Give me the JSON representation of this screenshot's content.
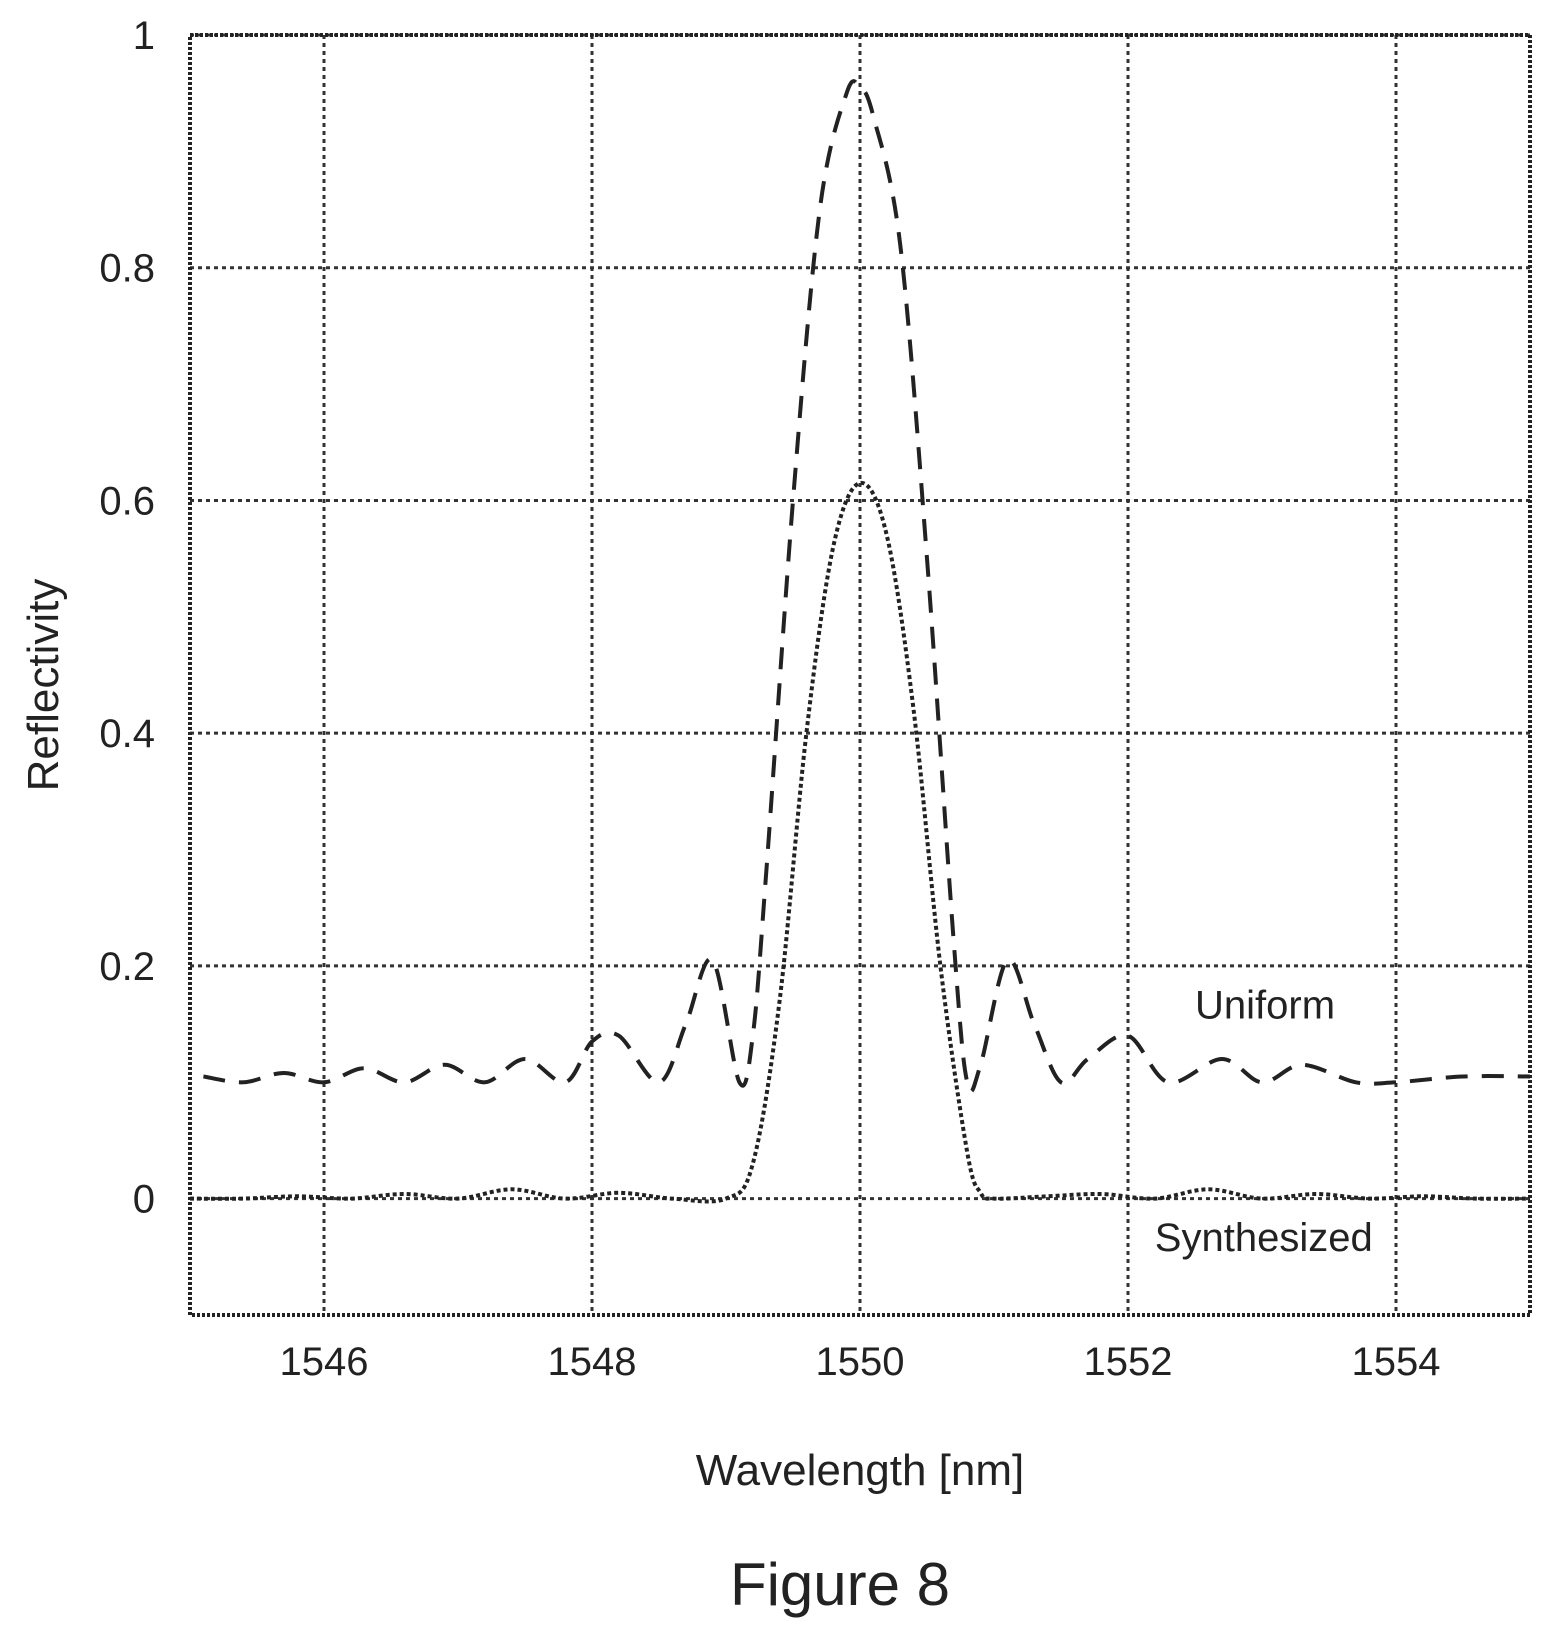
{
  "figure_caption": "Figure 8",
  "chart_data": {
    "type": "line",
    "xlabel": "Wavelength [nm]",
    "ylabel": "Reflectivity",
    "xlim": [
      1545,
      1555
    ],
    "ylim": [
      -0.1,
      1
    ],
    "x_ticks": [
      1546,
      1548,
      1550,
      1552,
      1554
    ],
    "y_ticks": [
      0,
      0.2,
      0.4,
      0.6,
      0.8,
      1
    ],
    "y_tick_labels": [
      "0",
      "0.2",
      "0.4",
      "0.6",
      "0.8",
      "1"
    ],
    "grid": true,
    "series": [
      {
        "name": "Uniform",
        "style": "dashed",
        "color": "#222222",
        "label_at": [
          1552.5,
          0.155
        ],
        "x": [
          1545.1,
          1545.4,
          1545.7,
          1546.0,
          1546.3,
          1546.6,
          1546.9,
          1547.2,
          1547.5,
          1547.8,
          1548.0,
          1548.2,
          1548.5,
          1548.7,
          1548.9,
          1549.1,
          1549.2,
          1549.3,
          1549.5,
          1549.7,
          1549.9,
          1550.0,
          1550.1,
          1550.3,
          1550.5,
          1550.7,
          1550.8,
          1550.9,
          1551.1,
          1551.3,
          1551.5,
          1551.7,
          1552.0,
          1552.3,
          1552.7,
          1553.0,
          1553.3,
          1553.7,
          1554.0,
          1554.5,
          1555.0
        ],
        "y": [
          0.105,
          0.1,
          0.108,
          0.1,
          0.112,
          0.1,
          0.115,
          0.1,
          0.12,
          0.1,
          0.135,
          0.14,
          0.1,
          0.15,
          0.205,
          0.1,
          0.14,
          0.28,
          0.6,
          0.85,
          0.95,
          0.955,
          0.93,
          0.82,
          0.55,
          0.22,
          0.1,
          0.115,
          0.205,
          0.15,
          0.1,
          0.12,
          0.14,
          0.1,
          0.12,
          0.1,
          0.115,
          0.1,
          0.1,
          0.105,
          0.105
        ]
      },
      {
        "name": "Synthesized",
        "style": "dotted",
        "color": "#222222",
        "label_at": [
          1552.2,
          -0.045
        ],
        "x": [
          1545.0,
          1545.4,
          1545.8,
          1546.2,
          1546.6,
          1547.0,
          1547.4,
          1547.8,
          1548.2,
          1548.6,
          1549.0,
          1549.2,
          1549.4,
          1549.6,
          1549.8,
          1550.0,
          1550.2,
          1550.4,
          1550.6,
          1550.8,
          1550.9,
          1551.0,
          1551.4,
          1551.8,
          1552.2,
          1552.6,
          1553.0,
          1553.4,
          1553.8,
          1554.2,
          1554.6,
          1555.0
        ],
        "y": [
          0.0,
          0.0,
          0.002,
          0.0,
          0.004,
          0.0,
          0.008,
          0.0,
          0.005,
          0.0,
          0.0,
          0.03,
          0.17,
          0.4,
          0.56,
          0.615,
          0.57,
          0.42,
          0.2,
          0.04,
          0.005,
          0.0,
          0.002,
          0.004,
          0.0,
          0.008,
          0.0,
          0.004,
          0.0,
          0.002,
          0.0,
          0.0
        ]
      }
    ]
  }
}
